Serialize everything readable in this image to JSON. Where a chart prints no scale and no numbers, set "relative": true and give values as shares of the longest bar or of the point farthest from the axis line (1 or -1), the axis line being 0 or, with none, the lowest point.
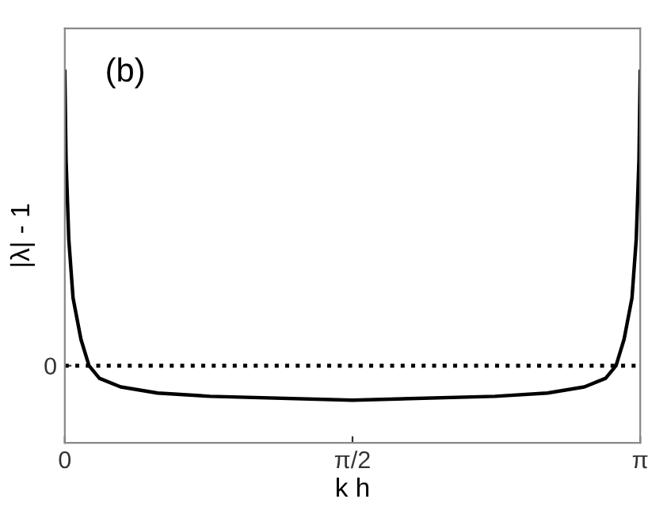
{
  "chart_data": {
    "type": "line",
    "relative": true,
    "xlabel": "k h",
    "ylabel": "|λ| - 1",
    "annotations": [
      "(b)"
    ],
    "x": [
      0,
      0.0069,
      0.0217,
      0.045,
      0.088,
      0.132,
      0.189,
      0.305,
      0.507,
      0.793,
      1.5708,
      2.3486,
      2.6346,
      2.8366,
      2.9526,
      3.0096,
      3.0536,
      3.0966,
      3.1199,
      3.1347,
      3.1416
    ],
    "series": [
      {
        "color": "#000000",
        "values": [
          1.0,
          0.7,
          0.43,
          0.23,
          0.09,
          0,
          -0.043,
          -0.072,
          -0.093,
          -0.104,
          -0.117,
          -0.104,
          -0.093,
          -0.072,
          -0.043,
          0,
          0.09,
          0.23,
          0.43,
          0.7,
          1.0
        ]
      }
    ],
    "xlim": [
      0,
      3.1416
    ],
    "xticks": [
      0,
      {
        "value": 1.5708,
        "label": "π/2"
      },
      {
        "value": 3.1416,
        "label": "π"
      }
    ],
    "ref_lines": [
      {
        "axis": "y",
        "value": 0,
        "label": "0",
        "color": "#000000",
        "line_style": "dotted"
      }
    ],
    "grid": false,
    "legend": false,
    "marker": "none",
    "line_style": "solid"
  }
}
